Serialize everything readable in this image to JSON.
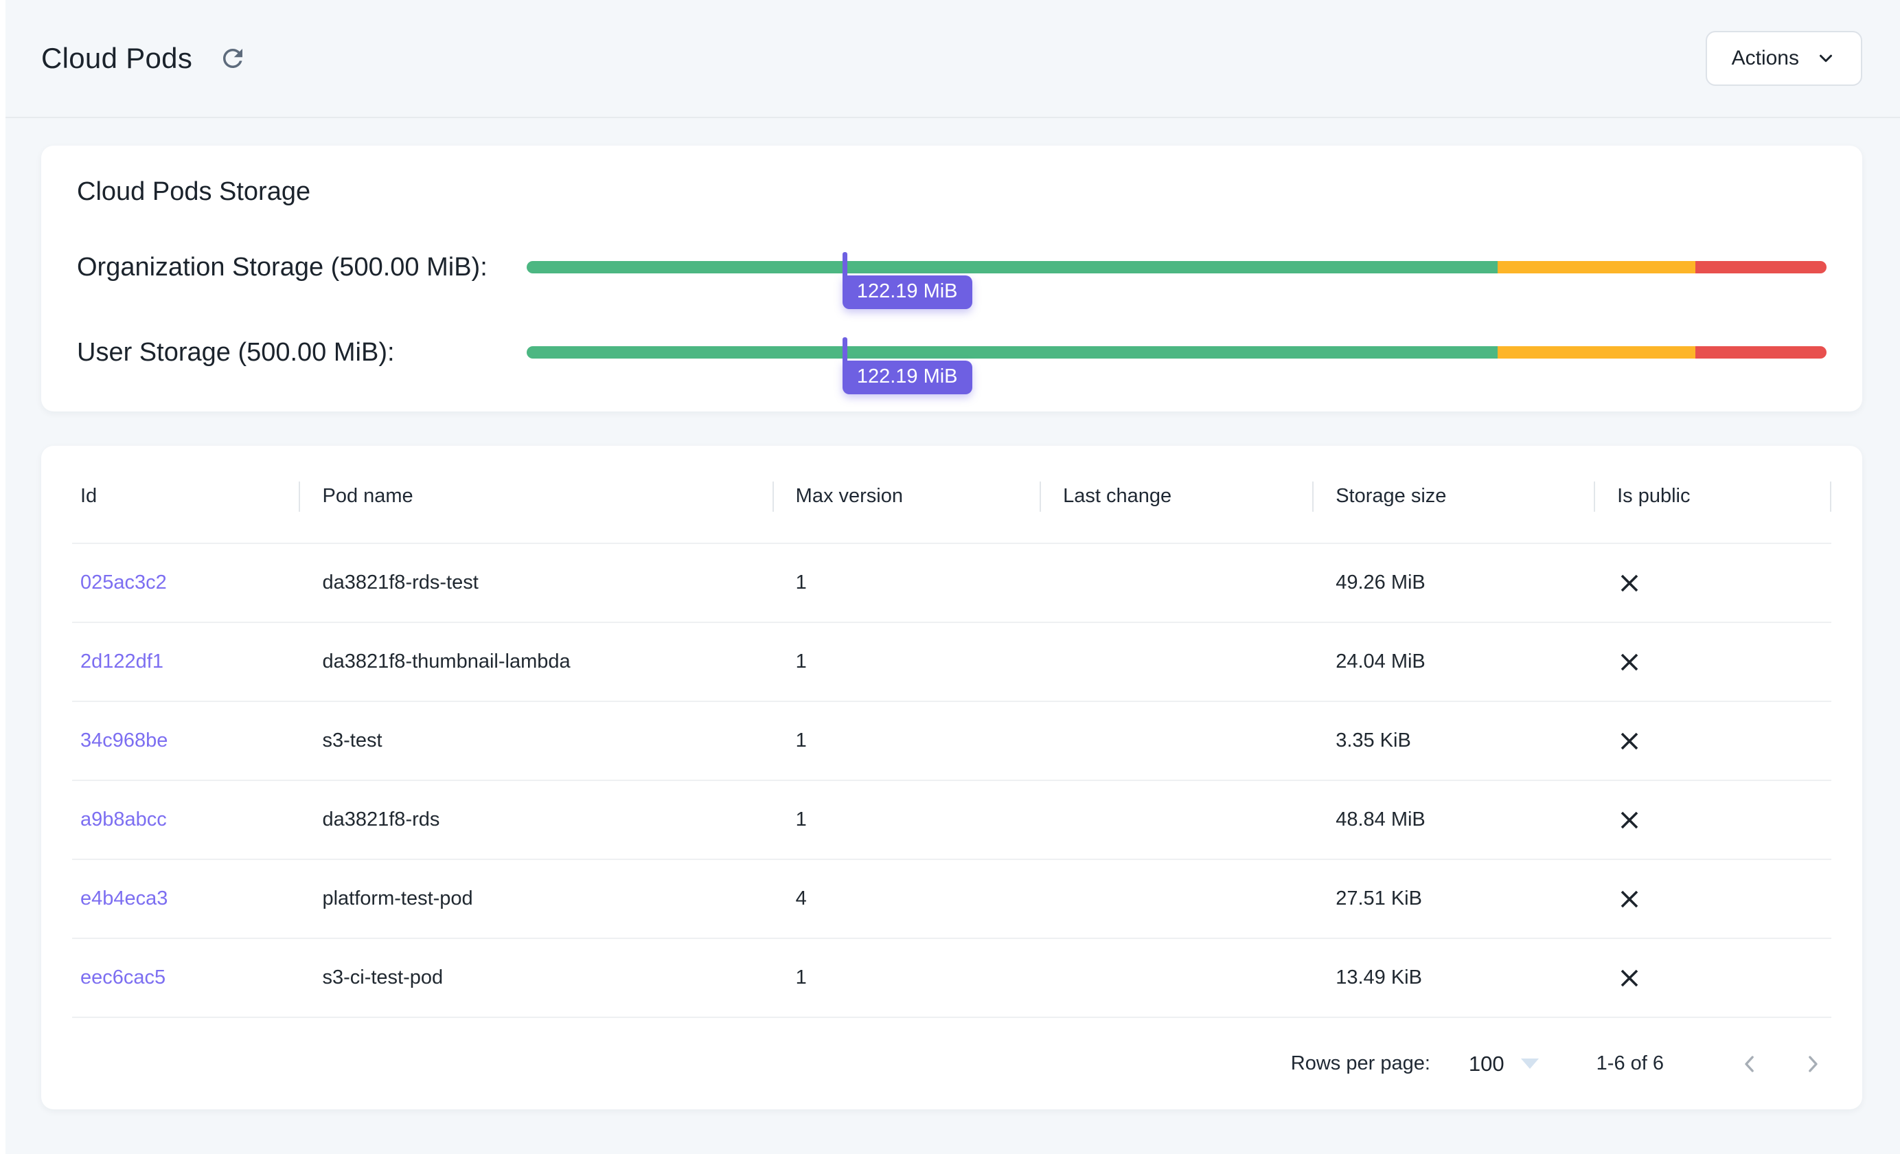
{
  "header": {
    "title": "Cloud Pods",
    "actions_label": "Actions"
  },
  "storage": {
    "card_title": "Cloud Pods Storage",
    "marker_color": "#6E60E2",
    "segments": [
      {
        "name": "ok-zone",
        "color": "#4CB782",
        "to_percent": 74.7
      },
      {
        "name": "warning-zone",
        "color": "#FDB528",
        "to_percent": 89.9
      },
      {
        "name": "danger-zone",
        "color": "#E8504E",
        "to_percent": 100
      }
    ],
    "bars": [
      {
        "label": "Organization Storage (500.00 MiB):",
        "value_label": "122.19 MiB",
        "percent": 24.45
      },
      {
        "label": "User Storage (500.00 MiB):",
        "value_label": "122.19 MiB",
        "percent": 24.45
      }
    ]
  },
  "table": {
    "columns": [
      "Id",
      "Pod name",
      "Max version",
      "Last change",
      "Storage size",
      "Is public"
    ],
    "column_widths": [
      "12.9%",
      "26.9%",
      "15.2%",
      "15.5%",
      "16.0%",
      "13.5%"
    ],
    "rows": [
      {
        "id": "025ac3c2",
        "pod_name": "da3821f8-rds-test",
        "max_version": "1",
        "last_change": "",
        "storage_size": "49.26 MiB",
        "is_public": false
      },
      {
        "id": "2d122df1",
        "pod_name": "da3821f8-thumbnail-lambda",
        "max_version": "1",
        "last_change": "",
        "storage_size": "24.04 MiB",
        "is_public": false
      },
      {
        "id": "34c968be",
        "pod_name": "s3-test",
        "max_version": "1",
        "last_change": "",
        "storage_size": "3.35 KiB",
        "is_public": false
      },
      {
        "id": "a9b8abcc",
        "pod_name": "da3821f8-rds",
        "max_version": "1",
        "last_change": "",
        "storage_size": "48.84 MiB",
        "is_public": false
      },
      {
        "id": "e4b4eca3",
        "pod_name": "platform-test-pod",
        "max_version": "4",
        "last_change": "",
        "storage_size": "27.51 KiB",
        "is_public": false
      },
      {
        "id": "eec6cac5",
        "pod_name": "s3-ci-test-pod",
        "max_version": "1",
        "last_change": "",
        "storage_size": "13.49 KiB",
        "is_public": false
      }
    ],
    "footer": {
      "rows_per_page_label": "Rows per page:",
      "rows_per_page_value": "100",
      "range_label": "1-6 of 6"
    }
  },
  "colors": {
    "link": "#7C6EF1",
    "icon_gray": "#5D6B7C",
    "chevron_gray": "#A7AEB6",
    "x_icon": "#1D242C"
  }
}
